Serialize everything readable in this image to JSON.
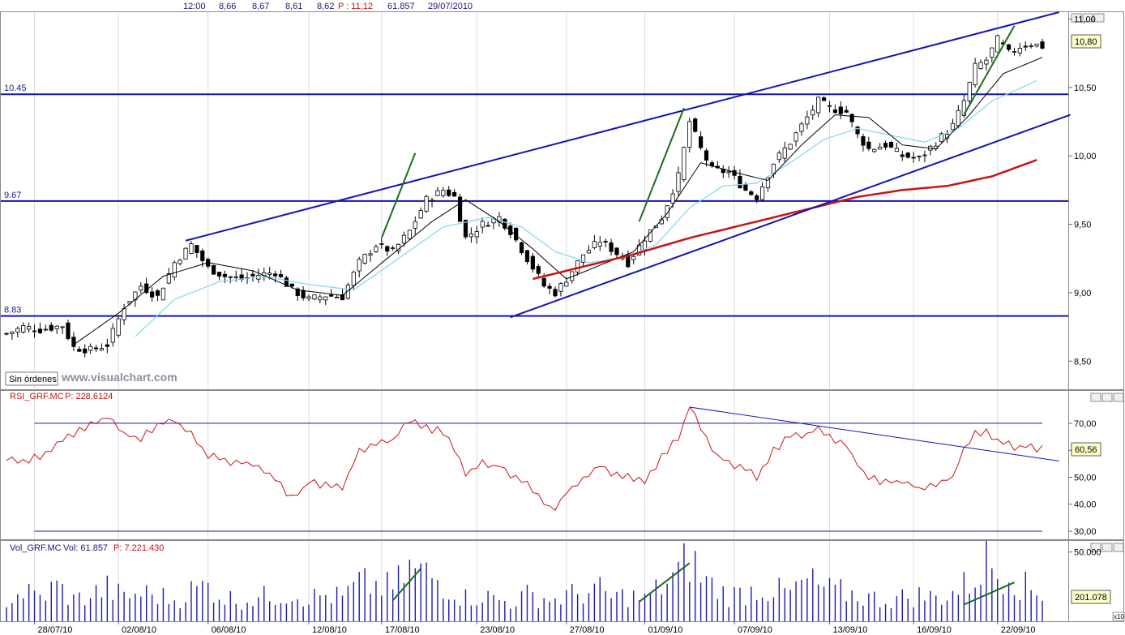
{
  "header": {
    "time": "12:00",
    "open": "8,66",
    "high": "8,67",
    "low": "8,61",
    "close": "8,62",
    "p_label": "P : 11,12",
    "volume": "61.857",
    "date": "29/07/2010"
  },
  "watermark": "www.visualchart.com",
  "orders_button": "Sin órdenes",
  "colors": {
    "candle": "#000000",
    "trendline": "#1414b4",
    "green_line": "#1a6e1a",
    "sma_long": "#c81414",
    "sma_short": "#000000",
    "sma_mid": "#7fd8f0",
    "rsi": "#c81414",
    "volume": "#1a1ab4"
  },
  "xaxis": {
    "labels": [
      "28/07/10",
      "02/08/10",
      "06/08/10",
      "12/08/10",
      "17/08/10",
      "23/08/10",
      "27/08/10",
      "01/09/10",
      "07/09/10",
      "13/09/10",
      "16/09/10",
      "22/09/10"
    ],
    "label_bars": [
      5,
      20,
      36,
      54,
      67,
      84,
      100,
      114,
      130,
      147,
      162,
      177
    ]
  },
  "chart_data": [
    {
      "type": "candlestick",
      "name": "price",
      "ylim": [
        8.3,
        11.05
      ],
      "yticks": [
        "11,00",
        "10,50",
        "10,00",
        "9,50",
        "9,00",
        "8,50"
      ],
      "ytick_values": [
        11.0,
        10.5,
        10.0,
        9.5,
        9.0,
        8.5
      ],
      "last_value_label": "10,80",
      "last_value": 10.8,
      "horizontal_levels": [
        {
          "label": "10.45",
          "value": 10.45
        },
        {
          "label": "9.67",
          "value": 9.67
        },
        {
          "label": "8.83",
          "value": 8.83
        }
      ],
      "close_anchors": [
        [
          0,
          8.7
        ],
        [
          3,
          8.75
        ],
        [
          6,
          8.73
        ],
        [
          10,
          8.76
        ],
        [
          12,
          8.6
        ],
        [
          15,
          8.58
        ],
        [
          18,
          8.62
        ],
        [
          21,
          8.9
        ],
        [
          24,
          9.05
        ],
        [
          27,
          8.97
        ],
        [
          30,
          9.22
        ],
        [
          33,
          9.35
        ],
        [
          36,
          9.18
        ],
        [
          39,
          9.12
        ],
        [
          42,
          9.1
        ],
        [
          45,
          9.13
        ],
        [
          48,
          9.15
        ],
        [
          51,
          9.02
        ],
        [
          54,
          8.95
        ],
        [
          57,
          8.98
        ],
        [
          60,
          8.97
        ],
        [
          63,
          9.22
        ],
        [
          66,
          9.35
        ],
        [
          69,
          9.3
        ],
        [
          72,
          9.45
        ],
        [
          75,
          9.68
        ],
        [
          78,
          9.75
        ],
        [
          80,
          9.7
        ],
        [
          82,
          9.4
        ],
        [
          85,
          9.5
        ],
        [
          88,
          9.55
        ],
        [
          90,
          9.45
        ],
        [
          93,
          9.25
        ],
        [
          96,
          9.05
        ],
        [
          98,
          9.0
        ],
        [
          100,
          9.1
        ],
        [
          103,
          9.28
        ],
        [
          106,
          9.38
        ],
        [
          108,
          9.32
        ],
        [
          111,
          9.22
        ],
        [
          114,
          9.4
        ],
        [
          117,
          9.55
        ],
        [
          120,
          9.85
        ],
        [
          122,
          10.25
        ],
        [
          124,
          10.05
        ],
        [
          126,
          9.9
        ],
        [
          129,
          9.88
        ],
        [
          132,
          9.75
        ],
        [
          134,
          9.7
        ],
        [
          137,
          9.95
        ],
        [
          140,
          10.1
        ],
        [
          143,
          10.28
        ],
        [
          145,
          10.4
        ],
        [
          147,
          10.35
        ],
        [
          150,
          10.32
        ],
        [
          152,
          10.15
        ],
        [
          154,
          10.05
        ],
        [
          157,
          10.08
        ],
        [
          160,
          10.0
        ],
        [
          163,
          9.98
        ],
        [
          166,
          10.1
        ],
        [
          169,
          10.22
        ],
        [
          171,
          10.4
        ],
        [
          173,
          10.65
        ],
        [
          175,
          10.7
        ],
        [
          177,
          10.85
        ],
        [
          179,
          10.75
        ],
        [
          181,
          10.8
        ],
        [
          183,
          10.82
        ],
        [
          185,
          10.8
        ]
      ],
      "sma_short_anchors": [
        [
          12,
          8.62
        ],
        [
          20,
          8.85
        ],
        [
          28,
          9.12
        ],
        [
          36,
          9.22
        ],
        [
          44,
          9.16
        ],
        [
          52,
          9.02
        ],
        [
          60,
          8.98
        ],
        [
          68,
          9.25
        ],
        [
          76,
          9.52
        ],
        [
          82,
          9.68
        ],
        [
          88,
          9.52
        ],
        [
          94,
          9.32
        ],
        [
          100,
          9.1
        ],
        [
          106,
          9.2
        ],
        [
          112,
          9.3
        ],
        [
          118,
          9.58
        ],
        [
          124,
          9.95
        ],
        [
          130,
          9.88
        ],
        [
          136,
          9.82
        ],
        [
          142,
          10.08
        ],
        [
          148,
          10.3
        ],
        [
          154,
          10.28
        ],
        [
          160,
          10.08
        ],
        [
          166,
          10.05
        ],
        [
          172,
          10.3
        ],
        [
          178,
          10.6
        ],
        [
          185,
          10.72
        ]
      ],
      "sma_mid_anchors": [
        [
          23,
          8.68
        ],
        [
          30,
          8.95
        ],
        [
          38,
          9.08
        ],
        [
          46,
          9.12
        ],
        [
          54,
          9.06
        ],
        [
          62,
          9.02
        ],
        [
          70,
          9.25
        ],
        [
          78,
          9.48
        ],
        [
          86,
          9.55
        ],
        [
          92,
          9.48
        ],
        [
          98,
          9.3
        ],
        [
          104,
          9.22
        ],
        [
          110,
          9.25
        ],
        [
          116,
          9.35
        ],
        [
          122,
          9.62
        ],
        [
          128,
          9.78
        ],
        [
          134,
          9.8
        ],
        [
          140,
          9.95
        ],
        [
          146,
          10.12
        ],
        [
          152,
          10.2
        ],
        [
          158,
          10.15
        ],
        [
          164,
          10.1
        ],
        [
          170,
          10.2
        ],
        [
          176,
          10.4
        ],
        [
          184,
          10.55
        ]
      ],
      "sma_long_anchors": [
        [
          94,
          9.1
        ],
        [
          102,
          9.18
        ],
        [
          112,
          9.28
        ],
        [
          122,
          9.4
        ],
        [
          132,
          9.5
        ],
        [
          142,
          9.6
        ],
        [
          152,
          9.7
        ],
        [
          160,
          9.75
        ],
        [
          168,
          9.78
        ],
        [
          176,
          9.85
        ],
        [
          184,
          9.97
        ]
      ],
      "trendlines": [
        {
          "color": "blue",
          "from": [
            32,
            9.38
          ],
          "to": [
            188,
            11.05
          ]
        },
        {
          "color": "blue",
          "from": [
            90,
            8.82
          ],
          "to": [
            190,
            10.3
          ]
        },
        {
          "color": "green",
          "from": [
            67,
            9.4
          ],
          "to": [
            73,
            10.02
          ]
        },
        {
          "color": "green",
          "from": [
            113,
            9.52
          ],
          "to": [
            121,
            10.35
          ]
        },
        {
          "color": "green",
          "from": [
            171,
            10.3
          ],
          "to": [
            180,
            10.95
          ]
        }
      ]
    },
    {
      "type": "line",
      "name": "RSI",
      "title": "RSI_GRF.MC",
      "header_value": "P: 228,6124",
      "ylim": [
        27,
        82
      ],
      "yticks": [
        "70,00",
        "60,00",
        "50,00",
        "40,00",
        "30,00"
      ],
      "ytick_values": [
        70,
        60,
        50,
        40,
        30
      ],
      "reference_levels": [
        70,
        30
      ],
      "last_value_label": "60,56",
      "anchors": [
        [
          0,
          57
        ],
        [
          3,
          55
        ],
        [
          6,
          58
        ],
        [
          9,
          62
        ],
        [
          12,
          66
        ],
        [
          15,
          70
        ],
        [
          18,
          72
        ],
        [
          21,
          66
        ],
        [
          24,
          64
        ],
        [
          27,
          70
        ],
        [
          30,
          71
        ],
        [
          33,
          66
        ],
        [
          36,
          58
        ],
        [
          39,
          56
        ],
        [
          42,
          55
        ],
        [
          45,
          54
        ],
        [
          48,
          50
        ],
        [
          51,
          42
        ],
        [
          54,
          48
        ],
        [
          57,
          47
        ],
        [
          60,
          46
        ],
        [
          63,
          60
        ],
        [
          66,
          62
        ],
        [
          69,
          64
        ],
        [
          72,
          71
        ],
        [
          75,
          68
        ],
        [
          78,
          67
        ],
        [
          80,
          60
        ],
        [
          82,
          52
        ],
        [
          85,
          55
        ],
        [
          88,
          54
        ],
        [
          90,
          51
        ],
        [
          93,
          47
        ],
        [
          96,
          40
        ],
        [
          98,
          38
        ],
        [
          100,
          44
        ],
        [
          103,
          50
        ],
        [
          106,
          55
        ],
        [
          108,
          52
        ],
        [
          111,
          50
        ],
        [
          114,
          48
        ],
        [
          117,
          58
        ],
        [
          120,
          65
        ],
        [
          122,
          76
        ],
        [
          124,
          68
        ],
        [
          126,
          60
        ],
        [
          129,
          55
        ],
        [
          132,
          53
        ],
        [
          134,
          50
        ],
        [
          137,
          60
        ],
        [
          140,
          65
        ],
        [
          143,
          66
        ],
        [
          145,
          68
        ],
        [
          147,
          65
        ],
        [
          150,
          62
        ],
        [
          152,
          55
        ],
        [
          154,
          50
        ],
        [
          157,
          48
        ],
        [
          160,
          48
        ],
        [
          163,
          46
        ],
        [
          166,
          48
        ],
        [
          169,
          50
        ],
        [
          171,
          60
        ],
        [
          173,
          66
        ],
        [
          175,
          67
        ],
        [
          177,
          64
        ],
        [
          179,
          62
        ],
        [
          181,
          61
        ],
        [
          183,
          61
        ],
        [
          185,
          60.56
        ]
      ],
      "trendline": {
        "from": [
          122,
          76
        ],
        "to": [
          188,
          56
        ]
      }
    },
    {
      "type": "bar",
      "name": "Volume",
      "title": "Vol_GRF.MC",
      "header_value": "Vol: 61.857",
      "header_p": "P: 7.221.430",
      "ylim": [
        0,
        58000
      ],
      "yticks": [
        "50.000"
      ],
      "ytick_values": [
        50000
      ],
      "last_value_label": "201.078",
      "scale_note": "x10",
      "anchors": [
        [
          0,
          18000
        ],
        [
          3,
          25000
        ],
        [
          6,
          20000
        ],
        [
          9,
          30000
        ],
        [
          12,
          18000
        ],
        [
          15,
          22000
        ],
        [
          18,
          28000
        ],
        [
          21,
          20000
        ],
        [
          24,
          24000
        ],
        [
          27,
          22000
        ],
        [
          30,
          18000
        ],
        [
          33,
          26000
        ],
        [
          36,
          30000
        ],
        [
          39,
          20000
        ],
        [
          42,
          18000
        ],
        [
          45,
          20000
        ],
        [
          48,
          22000
        ],
        [
          51,
          24000
        ],
        [
          54,
          20000
        ],
        [
          57,
          22000
        ],
        [
          60,
          20000
        ],
        [
          63,
          32000
        ],
        [
          66,
          30000
        ],
        [
          69,
          28000
        ],
        [
          72,
          44000
        ],
        [
          75,
          40000
        ],
        [
          78,
          32000
        ],
        [
          80,
          26000
        ],
        [
          82,
          20000
        ],
        [
          85,
          22000
        ],
        [
          88,
          18000
        ],
        [
          90,
          16000
        ],
        [
          93,
          22000
        ],
        [
          96,
          20000
        ],
        [
          98,
          18000
        ],
        [
          100,
          22000
        ],
        [
          103,
          24000
        ],
        [
          106,
          26000
        ],
        [
          108,
          20000
        ],
        [
          111,
          22000
        ],
        [
          114,
          18000
        ],
        [
          117,
          30000
        ],
        [
          120,
          40000
        ],
        [
          122,
          55000
        ],
        [
          124,
          38000
        ],
        [
          126,
          30000
        ],
        [
          129,
          22000
        ],
        [
          132,
          24000
        ],
        [
          134,
          28000
        ],
        [
          137,
          26000
        ],
        [
          140,
          24000
        ],
        [
          143,
          34000
        ],
        [
          145,
          30000
        ],
        [
          147,
          26000
        ],
        [
          150,
          24000
        ],
        [
          152,
          22000
        ],
        [
          154,
          20000
        ],
        [
          157,
          18000
        ],
        [
          160,
          20000
        ],
        [
          163,
          22000
        ],
        [
          166,
          20000
        ],
        [
          169,
          24000
        ],
        [
          171,
          30000
        ],
        [
          173,
          36000
        ],
        [
          175,
          56000
        ],
        [
          177,
          40000
        ],
        [
          179,
          46000
        ],
        [
          181,
          32000
        ],
        [
          183,
          26000
        ],
        [
          185,
          24000
        ]
      ],
      "green_line": {
        "from": [
          69,
          15000
        ],
        "to": [
          74,
          38000
        ]
      }
    }
  ]
}
